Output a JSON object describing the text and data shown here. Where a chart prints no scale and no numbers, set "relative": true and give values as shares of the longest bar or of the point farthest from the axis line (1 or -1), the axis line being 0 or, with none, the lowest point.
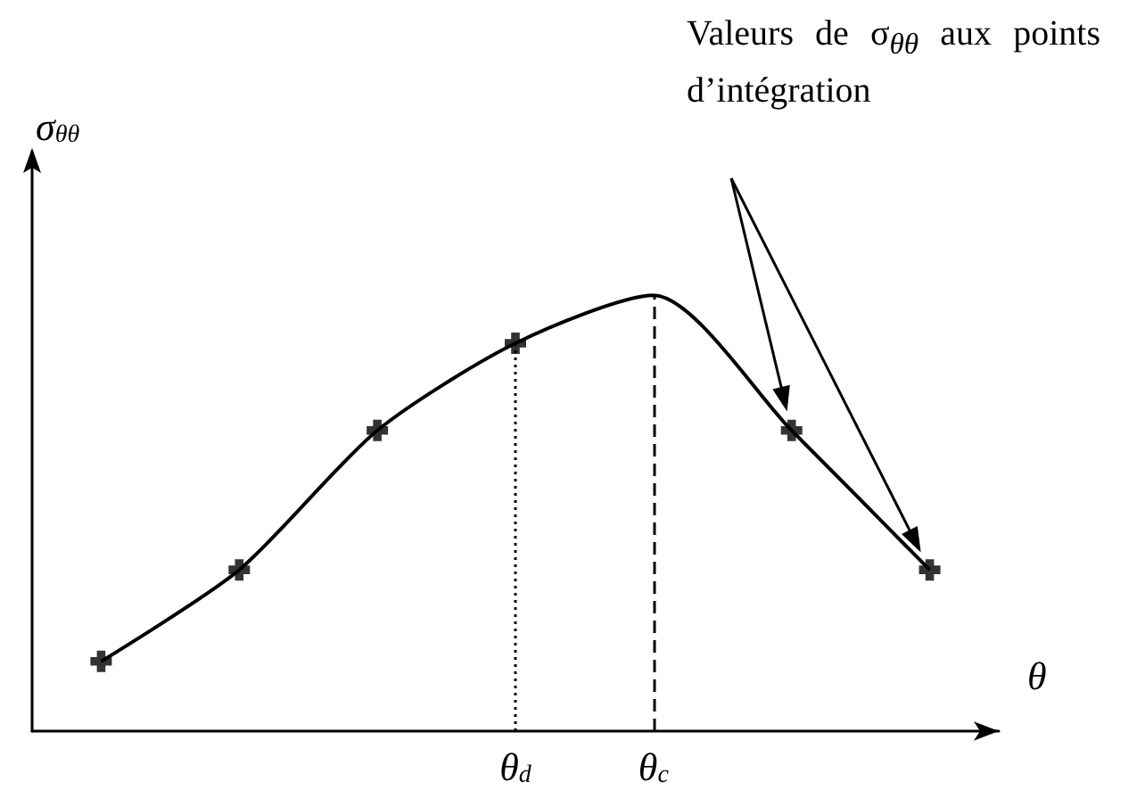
{
  "chart_data": {
    "type": "line",
    "relative": true,
    "xlabel": "θ",
    "ylabel": "σ$_{θθ}$",
    "marker": "cross",
    "grid": false,
    "tick_labels": "x",
    "categories": [
      null,
      null,
      null,
      "θ$_{d}$",
      "θ$_{c}$",
      null,
      null
    ],
    "series": [
      {
        "color": "#000000",
        "marker": "none",
        "values": [
          0.16,
          0.37,
          0.69,
          0.89,
          1,
          0.69,
          0.37
        ]
      },
      {
        "type": "scatter",
        "color": "#000000",
        "values": [
          0.16,
          0.37,
          0.69,
          0.89,
          null,
          0.69,
          0.37
        ]
      }
    ],
    "ref_lines": [
      {
        "axis": "x",
        "value": "θ$_{d}$",
        "line_style": "dotted"
      },
      {
        "axis": "x",
        "value": "θ$_{c}$",
        "line_style": "dashed"
      }
    ],
    "annotations": [
      "Valeurs de σ$_{θθ}$ aux points d’intégration"
    ]
  }
}
